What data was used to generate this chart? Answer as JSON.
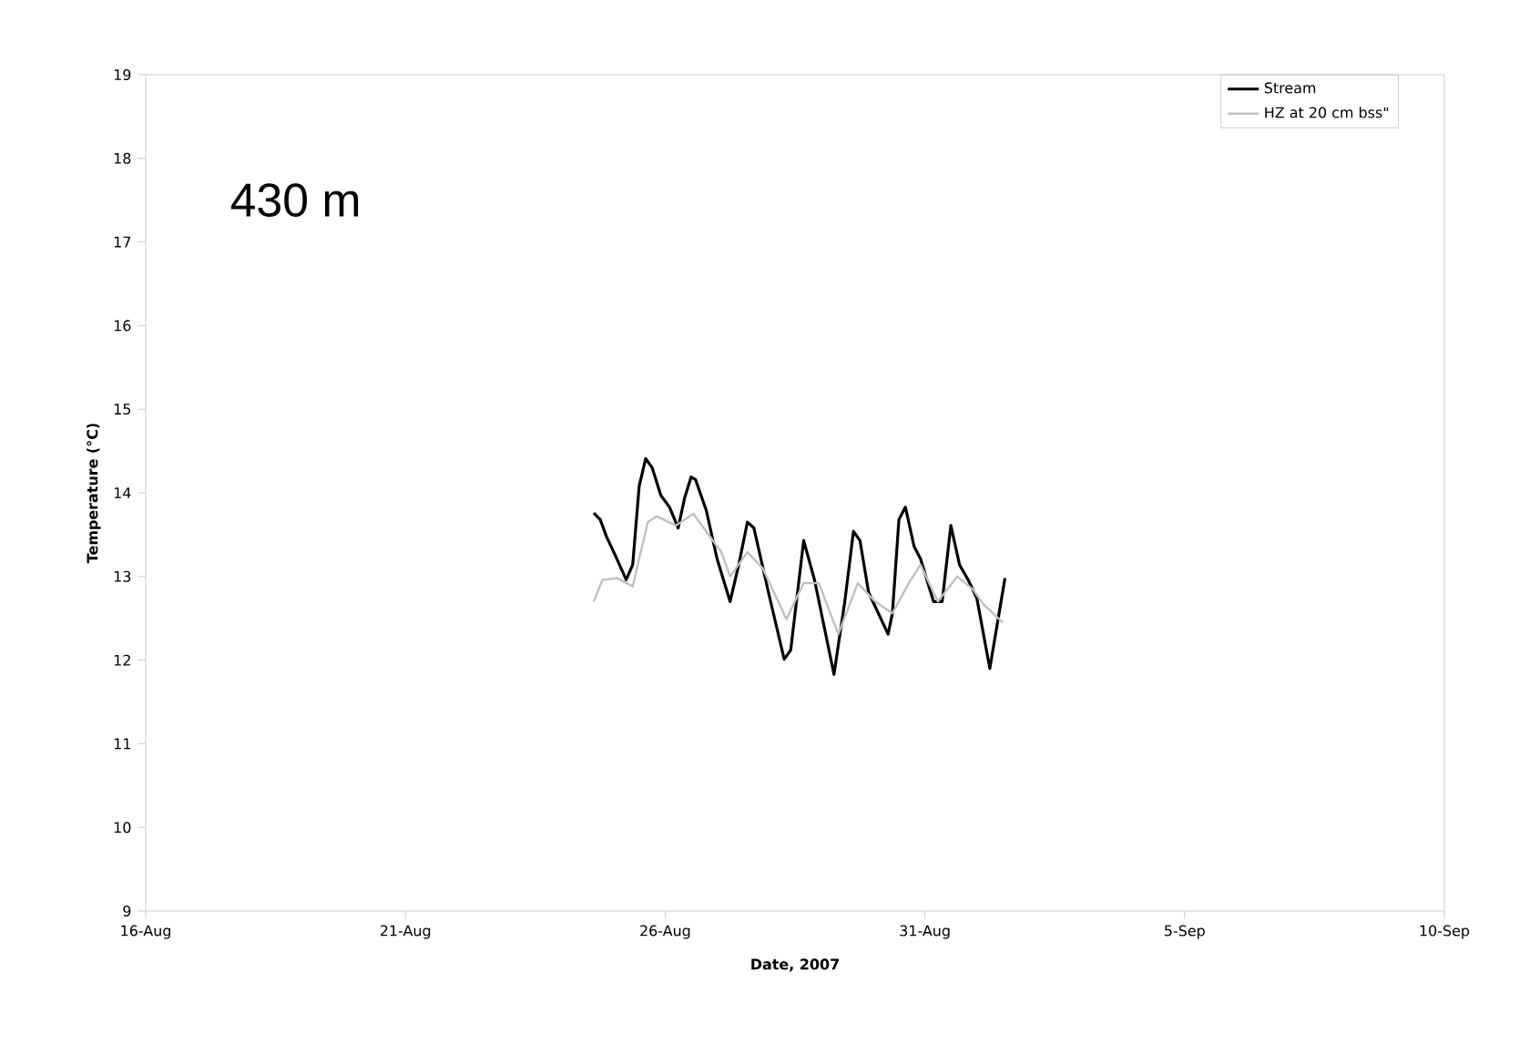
{
  "chart_data": {
    "type": "line",
    "xlabel": "Date, 2007",
    "ylabel": "Temperature (°C)",
    "annotations": [
      "430 m"
    ],
    "xlim": [
      "2007-08-16",
      "2007-09-10"
    ],
    "xticks": [
      {
        "value": "2007-08-16",
        "label": "16-Aug"
      },
      {
        "value": "2007-08-21",
        "label": "21-Aug"
      },
      {
        "value": "2007-08-26",
        "label": "26-Aug"
      },
      {
        "value": "2007-08-31",
        "label": "31-Aug"
      },
      {
        "value": "2007-09-05",
        "label": "5-Sep"
      },
      {
        "value": "2007-09-10",
        "label": "10-Sep"
      }
    ],
    "ylim": [
      9,
      19
    ],
    "yticks": [
      9,
      10,
      11,
      12,
      13,
      14,
      15,
      16,
      17,
      18,
      19
    ],
    "legend": "top right",
    "grid": false,
    "marker": "none",
    "line_style": "solid",
    "series": [
      {
        "name": "Stream",
        "color": "#000000",
        "x": [
          "2007-08-24T15:00",
          "2007-08-24T18:00",
          "2007-08-24T21:00",
          "2007-08-25T01:00",
          "2007-08-25T06:00",
          "2007-08-25T09:00",
          "2007-08-25T12:00",
          "2007-08-25T15:00",
          "2007-08-25T18:00",
          "2007-08-25T22:00",
          "2007-08-26T02:00",
          "2007-08-26T06:00",
          "2007-08-26T09:00",
          "2007-08-26T12:00",
          "2007-08-26T14:00",
          "2007-08-26T19:00",
          "2007-08-27T00:00",
          "2007-08-27T06:00",
          "2007-08-27T10:00",
          "2007-08-27T14:00",
          "2007-08-27T17:00",
          "2007-08-28T00:00",
          "2007-08-28T07:00",
          "2007-08-28T10:00",
          "2007-08-28T16:00",
          "2007-08-28T21:00",
          "2007-08-29T06:00",
          "2007-08-29T11:00",
          "2007-08-29T15:00",
          "2007-08-29T18:00",
          "2007-08-29T22:00",
          "2007-08-30T07:00",
          "2007-08-30T09:00",
          "2007-08-30T12:00",
          "2007-08-30T15:00",
          "2007-08-30T19:00",
          "2007-08-30T22:00",
          "2007-08-31T04:00",
          "2007-08-31T08:00",
          "2007-08-31T12:00",
          "2007-08-31T16:00",
          "2007-08-31T20:00",
          "2007-09-01T00:00",
          "2007-09-01T06:00",
          "2007-09-01T13:00"
        ],
        "values": [
          13.76,
          13.68,
          13.47,
          13.25,
          12.96,
          13.14,
          14.08,
          14.41,
          14.3,
          13.97,
          13.83,
          13.58,
          13.94,
          14.19,
          14.16,
          13.79,
          13.21,
          12.7,
          13.14,
          13.65,
          13.58,
          12.78,
          12.01,
          12.12,
          13.43,
          12.96,
          11.83,
          12.7,
          13.54,
          13.43,
          12.81,
          12.31,
          12.56,
          13.68,
          13.83,
          13.36,
          13.21,
          12.7,
          12.7,
          13.61,
          13.14,
          12.96,
          12.74,
          11.9,
          12.98
        ]
      },
      {
        "name": "HZ at 20 cm bss\"",
        "color": "#c0c0c0",
        "x": [
          "2007-08-24T15:00",
          "2007-08-24T19:00",
          "2007-08-25T02:00",
          "2007-08-25T09:00",
          "2007-08-25T16:00",
          "2007-08-25T20:00",
          "2007-08-26T05:00",
          "2007-08-26T13:00",
          "2007-08-27T02:00",
          "2007-08-27T06:00",
          "2007-08-27T14:00",
          "2007-08-27T21:00",
          "2007-08-28T08:00",
          "2007-08-28T16:00",
          "2007-08-28T23:00",
          "2007-08-29T08:00",
          "2007-08-29T17:00",
          "2007-08-30T01:00",
          "2007-08-30T09:00",
          "2007-08-30T17:00",
          "2007-08-30T22:00",
          "2007-08-31T06:00",
          "2007-08-31T15:00",
          "2007-08-31T22:00",
          "2007-09-01T03:00",
          "2007-09-01T12:00"
        ],
        "values": [
          12.7,
          12.96,
          12.98,
          12.88,
          13.65,
          13.72,
          13.61,
          13.75,
          13.29,
          13.0,
          13.29,
          13.1,
          12.49,
          12.92,
          12.92,
          12.31,
          12.92,
          12.7,
          12.56,
          12.94,
          13.14,
          12.7,
          13.0,
          12.85,
          12.67,
          12.45
        ]
      }
    ]
  }
}
